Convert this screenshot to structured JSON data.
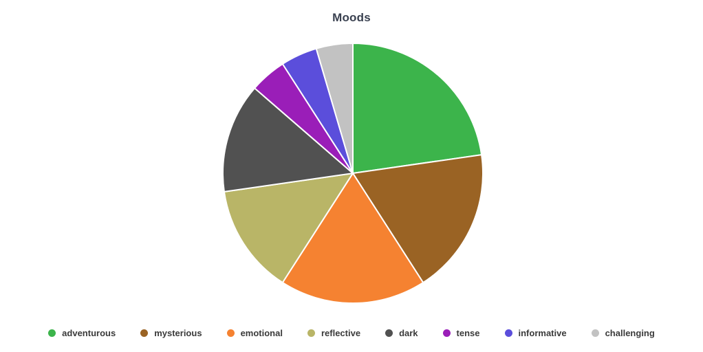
{
  "chart_data": {
    "type": "pie",
    "title": "Moods",
    "categories": [
      "adventurous",
      "mysterious",
      "emotional",
      "reflective",
      "dark",
      "tense",
      "informative",
      "challenging"
    ],
    "values": [
      10,
      8,
      8,
      6,
      6,
      2,
      2,
      2
    ],
    "percentages_estimated": [
      22.7,
      18.2,
      18.2,
      13.6,
      13.6,
      4.5,
      4.5,
      4.5
    ],
    "colors": [
      "#3cb44b",
      "#9a6324",
      "#f58231",
      "#b9b567",
      "#515151",
      "#9a1eb8",
      "#5b4edb",
      "#c2c2c2"
    ],
    "start_angle_deg": 0,
    "direction": "clockwise",
    "legend_position": "bottom",
    "slice_border_color": "#ffffff",
    "title_color": "#3a4150",
    "legend_text_color": "#3a3a3a",
    "background_color": "#ffffff"
  }
}
